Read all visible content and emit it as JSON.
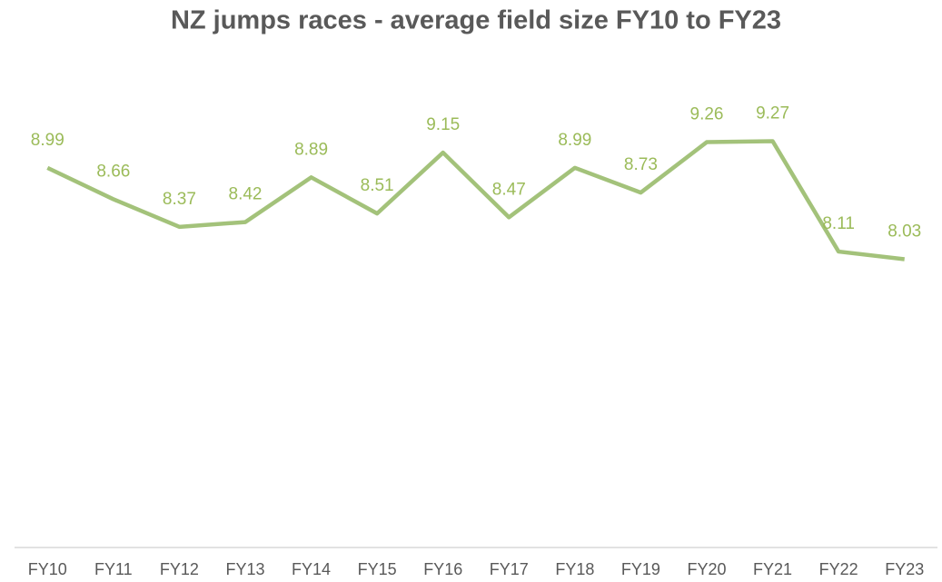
{
  "chart_data": {
    "type": "line",
    "title": "NZ jumps races - average field size FY10 to FY23",
    "categories": [
      "FY10",
      "FY11",
      "FY12",
      "FY13",
      "FY14",
      "FY15",
      "FY16",
      "FY17",
      "FY18",
      "FY19",
      "FY20",
      "FY21",
      "FY22",
      "FY23"
    ],
    "series": [
      {
        "name": "Average field size",
        "color": "#a3c27a",
        "values": [
          8.99,
          8.66,
          8.37,
          8.42,
          8.89,
          8.51,
          9.15,
          8.47,
          8.99,
          8.73,
          9.26,
          9.27,
          8.11,
          8.03
        ]
      }
    ],
    "ylim": [
      5,
      10
    ]
  }
}
